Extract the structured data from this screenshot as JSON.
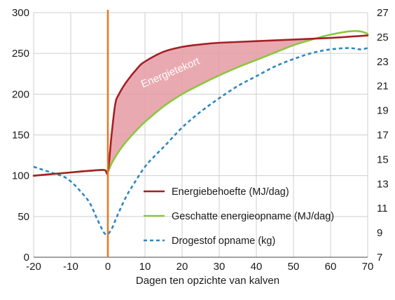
{
  "chart_data": {
    "type": "line",
    "xlabel": "Dagen ten opzichte van kalven",
    "ylabel_left": "",
    "ylabel_right": "",
    "xlim": [
      -20,
      70
    ],
    "ylim_left": [
      0,
      300
    ],
    "ylim_right": [
      7,
      27
    ],
    "x_ticks": [
      -20,
      -10,
      0,
      10,
      20,
      30,
      40,
      50,
      60,
      70
    ],
    "y_ticks_left": [
      0,
      50,
      100,
      150,
      200,
      250,
      300
    ],
    "y_ticks_right": [
      7,
      9,
      11,
      13,
      15,
      17,
      19,
      21,
      23,
      25,
      27
    ],
    "grid": true,
    "legend_position": "bottom-right",
    "calving_line_x": 0,
    "annotation": "Energietekort",
    "series": [
      {
        "name": "Energiebehoefte (MJ/dag)",
        "axis": "left",
        "style": "solid",
        "color": "#a51f26",
        "x": [
          -20,
          -15,
          -10,
          -5,
          -1,
          0,
          1,
          2,
          3,
          5,
          8,
          10,
          15,
          20,
          25,
          30,
          40,
          50,
          60,
          70
        ],
        "y": [
          100,
          102,
          104,
          106,
          107,
          105,
          150,
          188,
          200,
          215,
          232,
          240,
          252,
          258,
          261,
          263,
          265,
          267,
          269,
          272
        ]
      },
      {
        "name": "Geschatte energieopname (MJ/dag)",
        "axis": "left",
        "style": "solid",
        "color": "#8cc63f",
        "x": [
          -20,
          -15,
          -10,
          -5,
          -1,
          0,
          1,
          3,
          5,
          8,
          10,
          15,
          20,
          25,
          30,
          35,
          40,
          45,
          50,
          55,
          60,
          65,
          68,
          70
        ],
        "y": [
          100,
          102,
          104,
          106,
          107,
          105,
          115,
          130,
          142,
          157,
          166,
          185,
          200,
          212,
          223,
          233,
          242,
          251,
          260,
          267,
          273,
          277,
          277,
          274
        ]
      },
      {
        "name": "Drogestof opname (kg)",
        "axis": "right",
        "style": "dashed",
        "color": "#2f86c0",
        "x": [
          -20,
          -18,
          -15,
          -12,
          -10,
          -8,
          -5,
          -3,
          -1,
          0,
          1,
          2,
          3,
          5,
          7,
          10,
          13,
          15,
          20,
          25,
          30,
          35,
          40,
          45,
          50,
          55,
          60,
          65,
          68,
          70
        ],
        "y": [
          14.4,
          14.2,
          13.9,
          13.6,
          13.2,
          12.6,
          11.5,
          10.2,
          9.0,
          8.9,
          9.3,
          10.0,
          10.7,
          12.0,
          13.0,
          14.4,
          15.4,
          16.0,
          17.6,
          18.9,
          20.0,
          21.0,
          21.8,
          22.6,
          23.2,
          23.7,
          24.0,
          24.1,
          24.0,
          24.1
        ]
      }
    ]
  }
}
